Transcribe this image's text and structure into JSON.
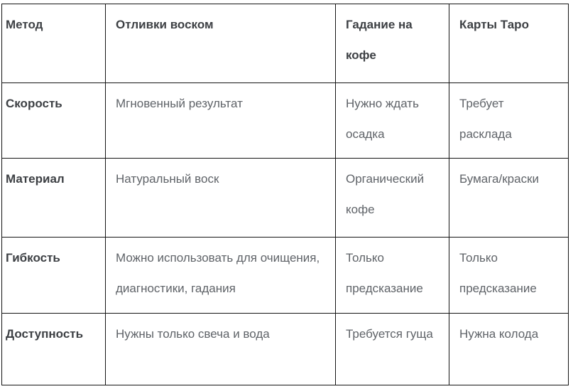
{
  "table": {
    "columns": [
      "Метод",
      "Отливки воском",
      "Гадание на кофе",
      "Карты Таро"
    ],
    "rows": [
      {
        "label": "Скорость",
        "cells": [
          "Мгновенный результат",
          "Нужно ждать осадка",
          "Требует расклада"
        ]
      },
      {
        "label": "Материал",
        "cells": [
          "Натуральный воск",
          "Органический кофе",
          "Бумага/краски"
        ]
      },
      {
        "label": "Гибкость",
        "cells": [
          "Можно использовать для очищения, диагностики, гадания",
          "Только предсказание",
          "Только предсказание"
        ]
      },
      {
        "label": "Доступность",
        "cells": [
          "Нужны только свеча и вода",
          "Требуется гуща",
          "Нужна колода"
        ]
      }
    ]
  },
  "colors": {
    "border": "#141414",
    "header_text": "#3d4044",
    "body_text": "#5f6368",
    "background": "#ffffff"
  }
}
